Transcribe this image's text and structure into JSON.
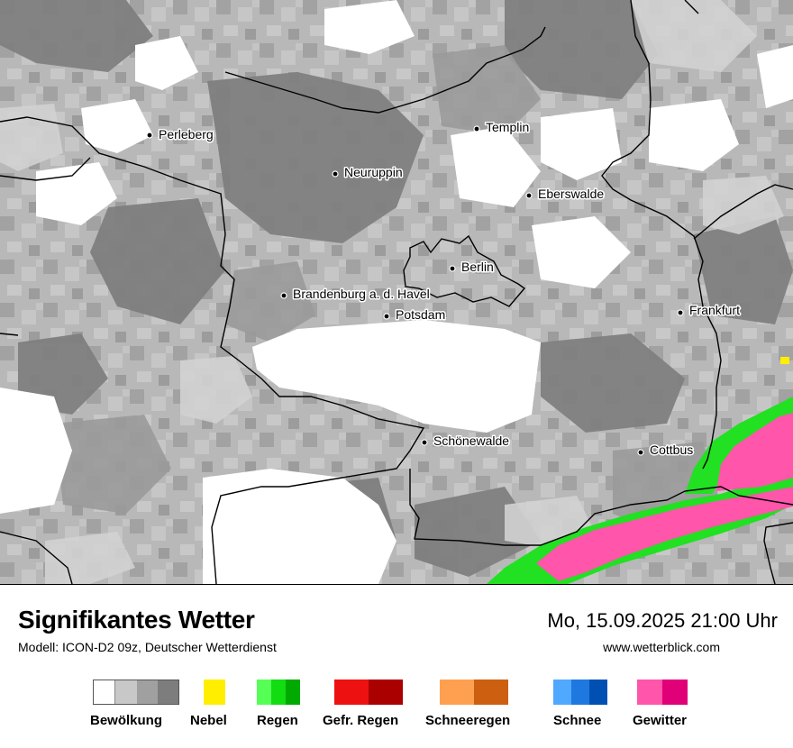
{
  "title": "Signifikantes Wetter",
  "model_line": "Modell: ICON-D2 09z, Deutscher Wetterdienst",
  "datetime": "Mo, 15.09.2025 21:00 Uhr",
  "website": "www.wetterblick.com",
  "cities": [
    {
      "name": "Perleberg"
    },
    {
      "name": "Templin"
    },
    {
      "name": "Neuruppin"
    },
    {
      "name": "Eberswalde"
    },
    {
      "name": "Berlin"
    },
    {
      "name": "Brandenburg a. d. Havel"
    },
    {
      "name": "Potsdam"
    },
    {
      "name": "Frankfurt"
    },
    {
      "name": "Schönewalde"
    },
    {
      "name": "Cottbus"
    }
  ],
  "legend": [
    {
      "label": "Bewölkung",
      "colors": [
        "#ffffff",
        "#c8c8c8",
        "#a0a0a0",
        "#7d7d7d"
      ]
    },
    {
      "label": "Nebel",
      "colors": [
        "#ffee00"
      ]
    },
    {
      "label": "Regen",
      "colors": [
        "#55ff55",
        "#11dd11",
        "#00aa00"
      ]
    },
    {
      "label": "Gefr. Regen",
      "colors": [
        "#ee1111",
        "#aa0000"
      ]
    },
    {
      "label": "Schneeregen",
      "colors": [
        "#ffa050",
        "#cc6010"
      ]
    },
    {
      "label": "Schnee",
      "colors": [
        "#50a8ff",
        "#1e78e0",
        "#0050b4"
      ]
    },
    {
      "label": "Gewitter",
      "colors": [
        "#ff55aa",
        "#e00078"
      ]
    }
  ]
}
